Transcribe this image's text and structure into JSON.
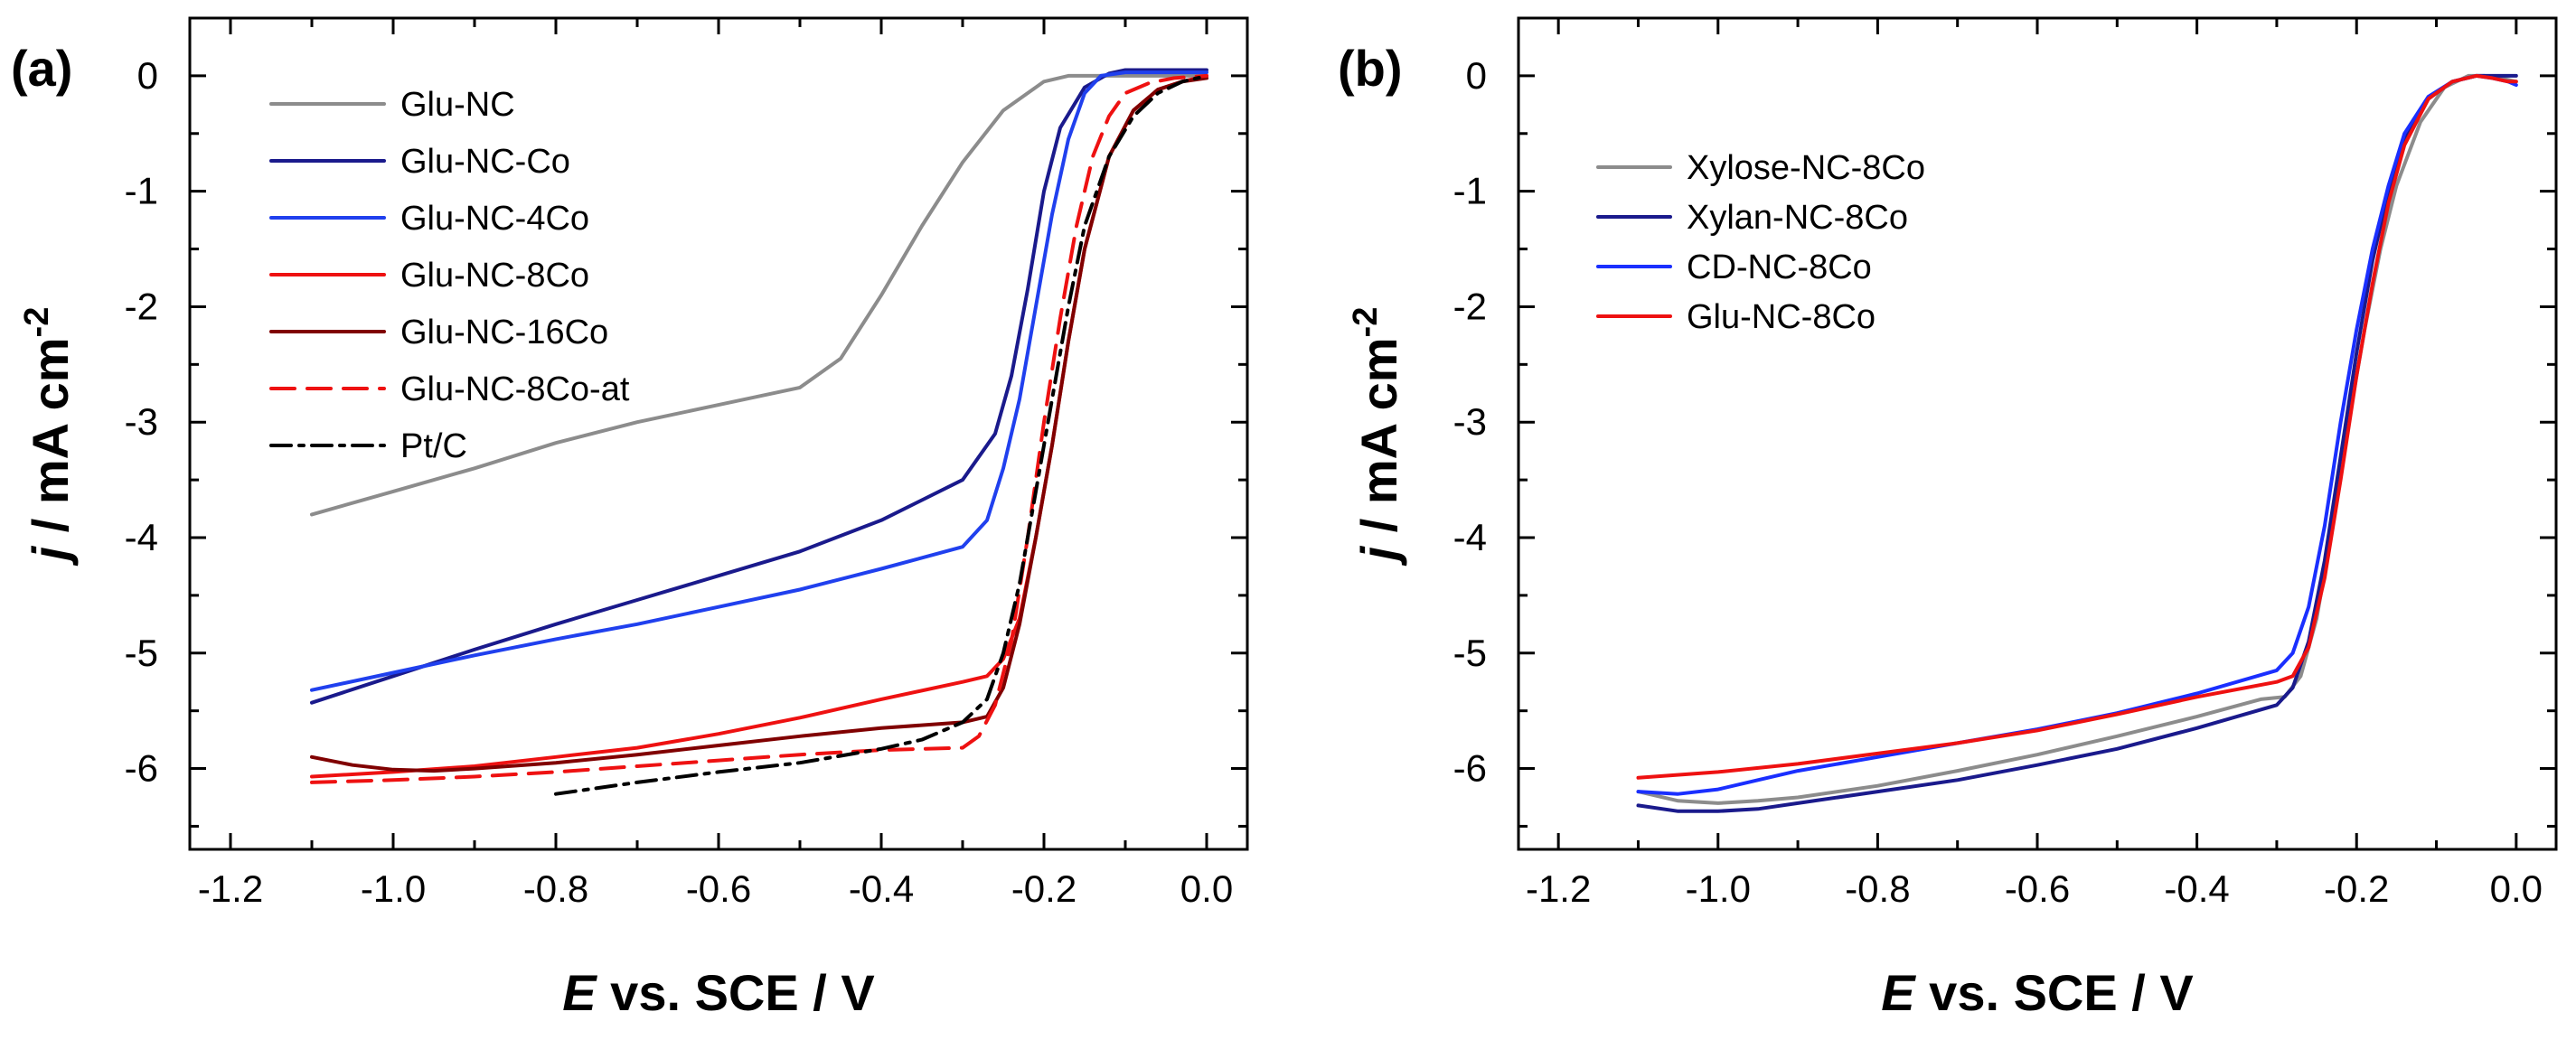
{
  "chart_data": [
    {
      "panel_label": "(a)",
      "type": "line",
      "xlabel_italic": "E",
      "xlabel_rest": " vs. SCE / V",
      "ylabel_italic": "j",
      "ylabel_rest": " / mA cm",
      "ylabel_sup": "-2",
      "xlim": [
        -1.25,
        0.05
      ],
      "ylim": [
        -6.7,
        0.5
      ],
      "xticks": [
        -1.2,
        -1.0,
        -0.8,
        -0.6,
        -0.4,
        -0.2,
        0.0
      ],
      "xtick_labels": [
        "-1.2",
        "-1.0",
        "-0.8",
        "-0.6",
        "-0.4",
        "-0.2",
        "0.0"
      ],
      "yticks": [
        0,
        -1,
        -2,
        -3,
        -4,
        -5,
        -6
      ],
      "ytick_labels": [
        "0",
        "-1",
        "-2",
        "-3",
        "-4",
        "-5",
        "-6"
      ],
      "legend_position": "top-left",
      "series": [
        {
          "name": "Glu-NC",
          "color": "#8c8c8c",
          "dash": "solid",
          "x": [
            -1.1,
            -1.0,
            -0.9,
            -0.8,
            -0.7,
            -0.6,
            -0.5,
            -0.45,
            -0.4,
            -0.35,
            -0.3,
            -0.25,
            -0.2,
            -0.17,
            -0.15,
            -0.1,
            0.0
          ],
          "y": [
            -3.8,
            -3.6,
            -3.4,
            -3.18,
            -3.0,
            -2.85,
            -2.7,
            -2.45,
            -1.9,
            -1.3,
            -0.75,
            -0.3,
            -0.05,
            0.0,
            0.0,
            0.0,
            0.0
          ]
        },
        {
          "name": "Glu-NC-Co",
          "color": "#1a1a8c",
          "dash": "solid",
          "x": [
            -1.1,
            -1.0,
            -0.9,
            -0.8,
            -0.7,
            -0.6,
            -0.5,
            -0.4,
            -0.3,
            -0.26,
            -0.24,
            -0.22,
            -0.2,
            -0.18,
            -0.15,
            -0.12,
            -0.1,
            0.0
          ],
          "y": [
            -5.43,
            -5.2,
            -4.97,
            -4.75,
            -4.54,
            -4.33,
            -4.12,
            -3.85,
            -3.5,
            -3.1,
            -2.6,
            -1.85,
            -1.0,
            -0.45,
            -0.1,
            0.02,
            0.05,
            0.05
          ]
        },
        {
          "name": "Glu-NC-4Co",
          "color": "#2040ee",
          "dash": "solid",
          "x": [
            -1.1,
            -1.0,
            -0.9,
            -0.8,
            -0.7,
            -0.6,
            -0.5,
            -0.4,
            -0.3,
            -0.27,
            -0.25,
            -0.23,
            -0.21,
            -0.19,
            -0.17,
            -0.15,
            -0.13,
            -0.1,
            0.0
          ],
          "y": [
            -5.32,
            -5.17,
            -5.02,
            -4.88,
            -4.75,
            -4.6,
            -4.45,
            -4.27,
            -4.08,
            -3.85,
            -3.4,
            -2.8,
            -2.0,
            -1.2,
            -0.55,
            -0.15,
            0.0,
            0.03,
            0.03
          ]
        },
        {
          "name": "Glu-NC-8Co",
          "color": "#ee1111",
          "dash": "solid",
          "x": [
            -1.1,
            -1.0,
            -0.9,
            -0.8,
            -0.7,
            -0.6,
            -0.5,
            -0.4,
            -0.3,
            -0.27,
            -0.25,
            -0.23,
            -0.21,
            -0.19,
            -0.17,
            -0.15,
            -0.12,
            -0.09,
            -0.06,
            -0.03,
            0.0
          ],
          "y": [
            -6.07,
            -6.03,
            -5.98,
            -5.9,
            -5.82,
            -5.7,
            -5.56,
            -5.4,
            -5.25,
            -5.2,
            -5.05,
            -4.7,
            -4.0,
            -3.2,
            -2.3,
            -1.5,
            -0.7,
            -0.3,
            -0.12,
            -0.05,
            0.0
          ]
        },
        {
          "name": "Glu-NC-16Co",
          "color": "#800000",
          "dash": "solid",
          "x": [
            -1.1,
            -1.05,
            -1.0,
            -0.95,
            -0.9,
            -0.8,
            -0.7,
            -0.6,
            -0.5,
            -0.4,
            -0.3,
            -0.27,
            -0.25,
            -0.23,
            -0.21,
            -0.19,
            -0.17,
            -0.15,
            -0.12,
            -0.09,
            -0.06,
            -0.03,
            0.0
          ],
          "y": [
            -5.9,
            -5.97,
            -6.01,
            -6.02,
            -6.0,
            -5.95,
            -5.88,
            -5.8,
            -5.72,
            -5.65,
            -5.6,
            -5.55,
            -5.3,
            -4.75,
            -4.0,
            -3.2,
            -2.3,
            -1.5,
            -0.7,
            -0.3,
            -0.12,
            -0.05,
            -0.02
          ]
        },
        {
          "name": "Glu-NC-8Co-at",
          "color": "#ee1111",
          "dash": "long-dash",
          "x": [
            -1.1,
            -1.0,
            -0.9,
            -0.8,
            -0.7,
            -0.6,
            -0.5,
            -0.4,
            -0.3,
            -0.28,
            -0.26,
            -0.24,
            -0.22,
            -0.2,
            -0.18,
            -0.16,
            -0.14,
            -0.12,
            -0.1,
            -0.07,
            -0.04,
            0.0
          ],
          "y": [
            -6.12,
            -6.1,
            -6.07,
            -6.03,
            -5.98,
            -5.93,
            -5.88,
            -5.84,
            -5.82,
            -5.72,
            -5.45,
            -4.9,
            -4.0,
            -3.0,
            -2.1,
            -1.3,
            -0.7,
            -0.35,
            -0.15,
            -0.06,
            -0.02,
            0.0
          ]
        },
        {
          "name": "Pt/C",
          "color": "#000000",
          "dash": "dash-dot",
          "x": [
            -0.8,
            -0.7,
            -0.6,
            -0.5,
            -0.4,
            -0.35,
            -0.3,
            -0.27,
            -0.25,
            -0.23,
            -0.21,
            -0.19,
            -0.17,
            -0.15,
            -0.12,
            -0.09,
            -0.06,
            -0.03,
            0.0
          ],
          "y": [
            -6.22,
            -6.12,
            -6.03,
            -5.95,
            -5.83,
            -5.75,
            -5.6,
            -5.4,
            -5.0,
            -4.4,
            -3.6,
            -2.8,
            -2.0,
            -1.3,
            -0.7,
            -0.35,
            -0.15,
            -0.05,
            0.0
          ]
        }
      ]
    },
    {
      "panel_label": "(b)",
      "type": "line",
      "xlabel_italic": "E",
      "xlabel_rest": " vs. SCE / V",
      "ylabel_italic": "j",
      "ylabel_rest": " / mA cm",
      "ylabel_sup": "-2",
      "xlim": [
        -1.25,
        0.05
      ],
      "ylim": [
        -6.7,
        0.5
      ],
      "xticks": [
        -1.2,
        -1.0,
        -0.8,
        -0.6,
        -0.4,
        -0.2,
        0.0
      ],
      "xtick_labels": [
        "-1.2",
        "-1.0",
        "-0.8",
        "-0.6",
        "-0.4",
        "-0.2",
        "0.0"
      ],
      "yticks": [
        0,
        -1,
        -2,
        -3,
        -4,
        -5,
        -6
      ],
      "ytick_labels": [
        "0",
        "-1",
        "-2",
        "-3",
        "-4",
        "-5",
        "-6"
      ],
      "legend_position": "top-left",
      "series": [
        {
          "name": "Xylose-NC-8Co",
          "color": "#8c8c8c",
          "dash": "solid",
          "x": [
            -1.1,
            -1.05,
            -1.0,
            -0.95,
            -0.9,
            -0.8,
            -0.7,
            -0.6,
            -0.5,
            -0.4,
            -0.32,
            -0.29,
            -0.27,
            -0.25,
            -0.23,
            -0.21,
            -0.19,
            -0.17,
            -0.15,
            -0.12,
            -0.09,
            -0.06,
            -0.04,
            -0.02,
            0.0
          ],
          "y": [
            -6.2,
            -6.28,
            -6.3,
            -6.28,
            -6.25,
            -6.15,
            -6.02,
            -5.88,
            -5.72,
            -5.55,
            -5.4,
            -5.38,
            -5.2,
            -4.7,
            -3.9,
            -3.0,
            -2.2,
            -1.5,
            -0.95,
            -0.4,
            -0.1,
            0.0,
            0.0,
            -0.02,
            -0.05
          ]
        },
        {
          "name": "Xylan-NC-8Co",
          "color": "#1a1a8c",
          "dash": "solid",
          "x": [
            -1.1,
            -1.05,
            -1.0,
            -0.95,
            -0.9,
            -0.8,
            -0.7,
            -0.6,
            -0.5,
            -0.4,
            -0.3,
            -0.28,
            -0.26,
            -0.24,
            -0.22,
            -0.2,
            -0.18,
            -0.16,
            -0.14,
            -0.11,
            -0.08,
            -0.05,
            -0.03,
            0.0
          ],
          "y": [
            -6.32,
            -6.37,
            -6.37,
            -6.35,
            -6.3,
            -6.2,
            -6.1,
            -5.97,
            -5.83,
            -5.65,
            -5.45,
            -5.3,
            -4.9,
            -4.2,
            -3.3,
            -2.4,
            -1.6,
            -1.0,
            -0.55,
            -0.2,
            -0.05,
            0.0,
            0.0,
            0.0
          ]
        },
        {
          "name": "CD-NC-8Co",
          "color": "#1a2fff",
          "dash": "solid",
          "x": [
            -1.1,
            -1.05,
            -1.0,
            -0.95,
            -0.9,
            -0.8,
            -0.7,
            -0.6,
            -0.5,
            -0.4,
            -0.3,
            -0.28,
            -0.26,
            -0.24,
            -0.22,
            -0.2,
            -0.18,
            -0.16,
            -0.14,
            -0.11,
            -0.08,
            -0.05,
            -0.03,
            -0.01,
            0.0
          ],
          "y": [
            -6.2,
            -6.22,
            -6.18,
            -6.1,
            -6.02,
            -5.9,
            -5.78,
            -5.66,
            -5.52,
            -5.35,
            -5.15,
            -5.0,
            -4.6,
            -3.9,
            -3.0,
            -2.2,
            -1.5,
            -0.95,
            -0.5,
            -0.18,
            -0.05,
            0.0,
            -0.02,
            -0.05,
            -0.08
          ]
        },
        {
          "name": "Glu-NC-8Co",
          "color": "#ee1111",
          "dash": "solid",
          "x": [
            -1.1,
            -1.0,
            -0.9,
            -0.8,
            -0.7,
            -0.6,
            -0.5,
            -0.4,
            -0.3,
            -0.28,
            -0.26,
            -0.24,
            -0.22,
            -0.2,
            -0.18,
            -0.16,
            -0.14,
            -0.11,
            -0.08,
            -0.05,
            -0.03,
            -0.01,
            0.0
          ],
          "y": [
            -6.08,
            -6.03,
            -5.96,
            -5.87,
            -5.78,
            -5.67,
            -5.53,
            -5.38,
            -5.25,
            -5.2,
            -4.95,
            -4.35,
            -3.5,
            -2.6,
            -1.8,
            -1.1,
            -0.6,
            -0.2,
            -0.05,
            0.0,
            -0.02,
            -0.05,
            -0.05
          ]
        }
      ]
    }
  ]
}
